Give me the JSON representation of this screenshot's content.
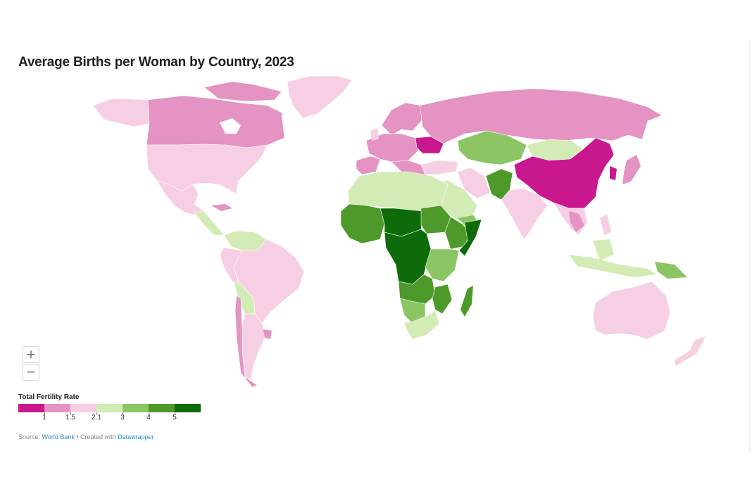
{
  "title": "Average Births per Woman by Country, 2023",
  "zoom": {
    "in_label": "+",
    "out_label": "−"
  },
  "legend": {
    "title": "Total Fertility Rate",
    "colors": [
      "#c9178e",
      "#e493c3",
      "#f7cfe4",
      "#d3ebb5",
      "#8cc664",
      "#4d9a2a",
      "#0d6b0a"
    ],
    "labels": [
      "1",
      "1.5",
      "2.1",
      "3",
      "4",
      "5"
    ]
  },
  "source": {
    "prefix": "Source: ",
    "source_link": "World Bank",
    "separator": " • Created with ",
    "tool_link": "Datawrapper"
  }
}
